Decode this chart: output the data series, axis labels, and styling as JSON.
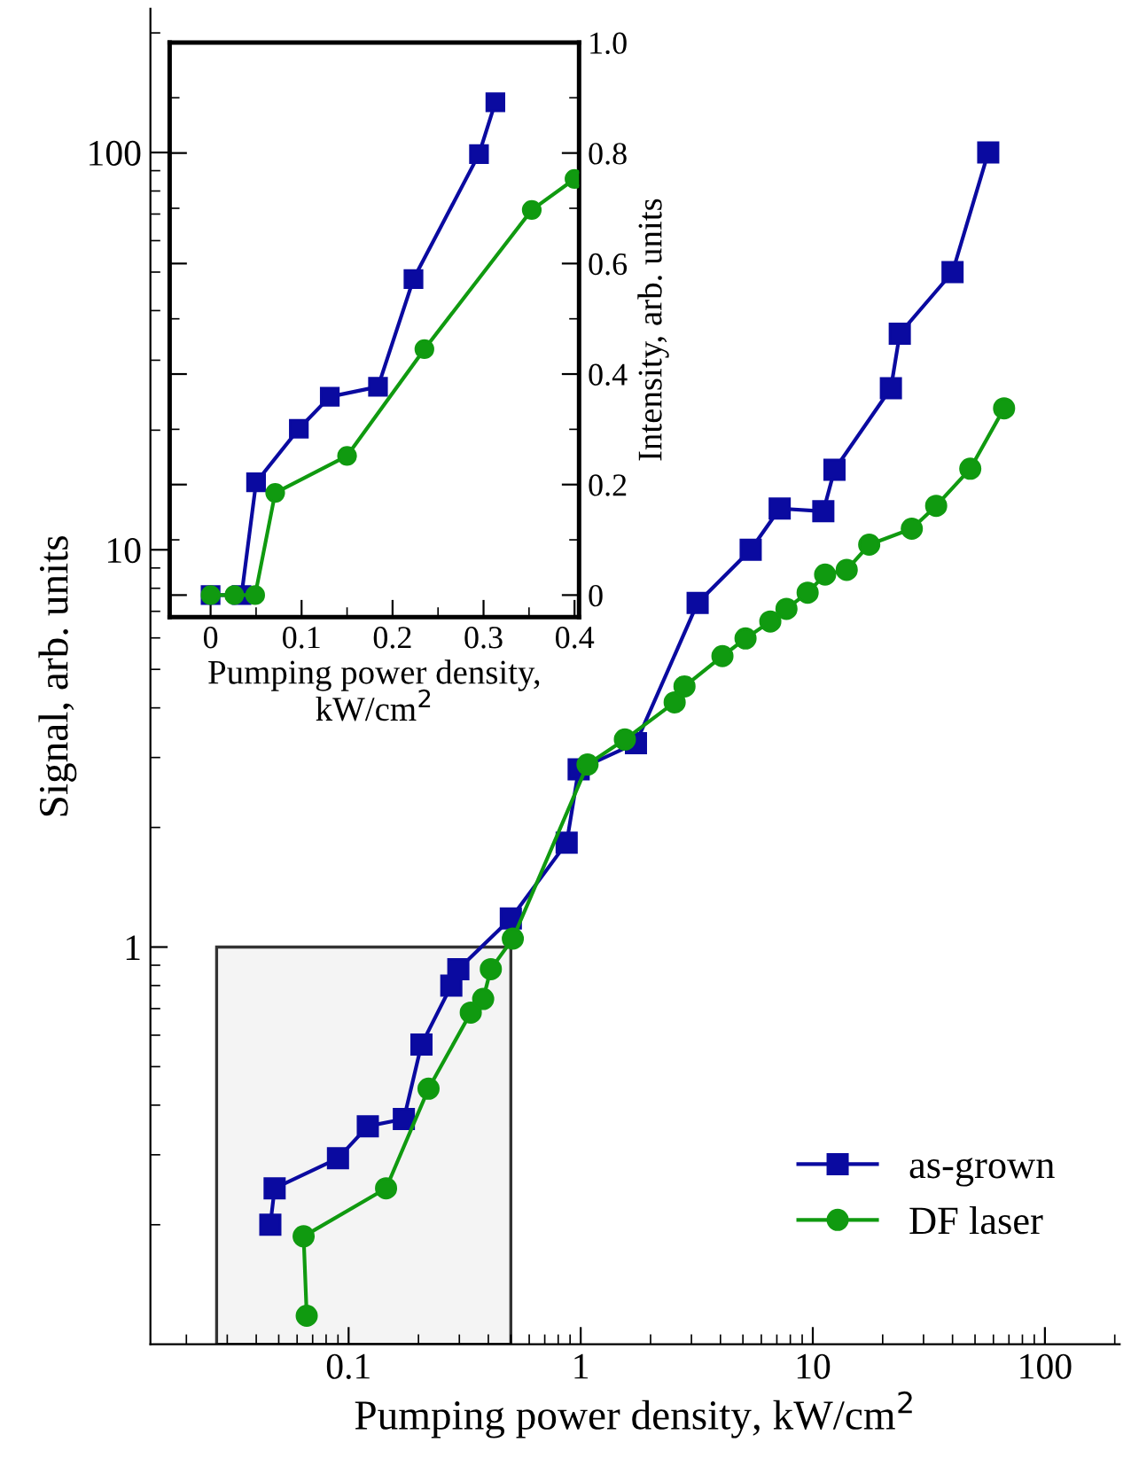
{
  "chart_data": [
    {
      "type": "line",
      "xlabel": "Pumping power density, kW/cm$^{2}$",
      "ylabel": "Signal, arb. units",
      "log": "xy",
      "xlim": [
        0.014,
        210
      ],
      "ylim": [
        0.1,
        230
      ],
      "xticks": [
        0.1,
        1,
        10,
        100
      ],
      "yticks": [
        1,
        10,
        100
      ],
      "legend": "lower right",
      "grid": false,
      "bands": [
        {
          "axis": "x",
          "from": 0.027,
          "to": 0.5
        }
      ],
      "series": [
        {
          "name": "as-grown",
          "color": "#0a0aa0",
          "marker": "square",
          "x": [
            0.046,
            0.048,
            0.09,
            0.121,
            0.173,
            0.206,
            0.277,
            0.297,
            0.5,
            0.87,
            0.98,
            1.73,
            3.19,
            5.4,
            7.2,
            11.1,
            12.4,
            21.7,
            23.7,
            40,
            57
          ],
          "values": [
            0.2,
            0.247,
            0.294,
            0.354,
            0.369,
            0.568,
            0.8,
            0.88,
            1.18,
            1.83,
            2.8,
            3.26,
            7.35,
            10,
            12.7,
            12.5,
            15.9,
            25.5,
            35,
            50,
            100
          ]
        },
        {
          "name": "DF laser",
          "color": "#109a10",
          "marker": "circle",
          "x": [
            0.066,
            0.064,
            0.145,
            0.221,
            0.336,
            0.38,
            0.41,
            0.51,
            1.07,
            1.55,
            2.54,
            2.8,
            4.08,
            5.13,
            6.56,
            7.7,
            9.5,
            11.3,
            14,
            17.5,
            26.7,
            34,
            47.7,
            66.7
          ],
          "values": [
            0.118,
            0.187,
            0.247,
            0.44,
            0.684,
            0.74,
            0.88,
            1.05,
            2.88,
            3.33,
            4.13,
            4.53,
            5.4,
            5.98,
            6.6,
            7.1,
            7.8,
            8.66,
            8.9,
            10.3,
            11.3,
            12.9,
            16,
            22.7
          ]
        }
      ]
    },
    {
      "type": "line",
      "xlabel": "Pumping power density,\nkW/cm$^{2}$",
      "y2label": "Intensity, arb. units",
      "xlim": [
        -0.045,
        0.405
      ],
      "y2lim": [
        -0.04,
        1.0
      ],
      "xticks": [
        0,
        0.1,
        0.2,
        0.3,
        0.4
      ],
      "y2ticks": [
        0,
        0.2,
        0.4,
        0.6,
        0.8,
        {
          "value": 1.0,
          "label": "1.0"
        }
      ],
      "grid": false,
      "series": [
        {
          "color": "#0a0aa0",
          "marker": "square",
          "axis": "y2",
          "x": [
            0,
            0.034,
            0.05,
            0.097,
            0.131,
            0.184,
            0.223,
            0.295,
            0.313
          ],
          "values": [
            0,
            0,
            0.204,
            0.301,
            0.359,
            0.377,
            0.572,
            0.798,
            0.892
          ]
        },
        {
          "color": "#109a10",
          "marker": "circle",
          "axis": "y2",
          "x": [
            0,
            0.026,
            0.049,
            0.071,
            0.15,
            0.235,
            0.353,
            0.4
          ],
          "values": [
            0,
            0,
            0,
            0.185,
            0.252,
            0.445,
            0.697,
            0.753
          ]
        }
      ]
    }
  ]
}
